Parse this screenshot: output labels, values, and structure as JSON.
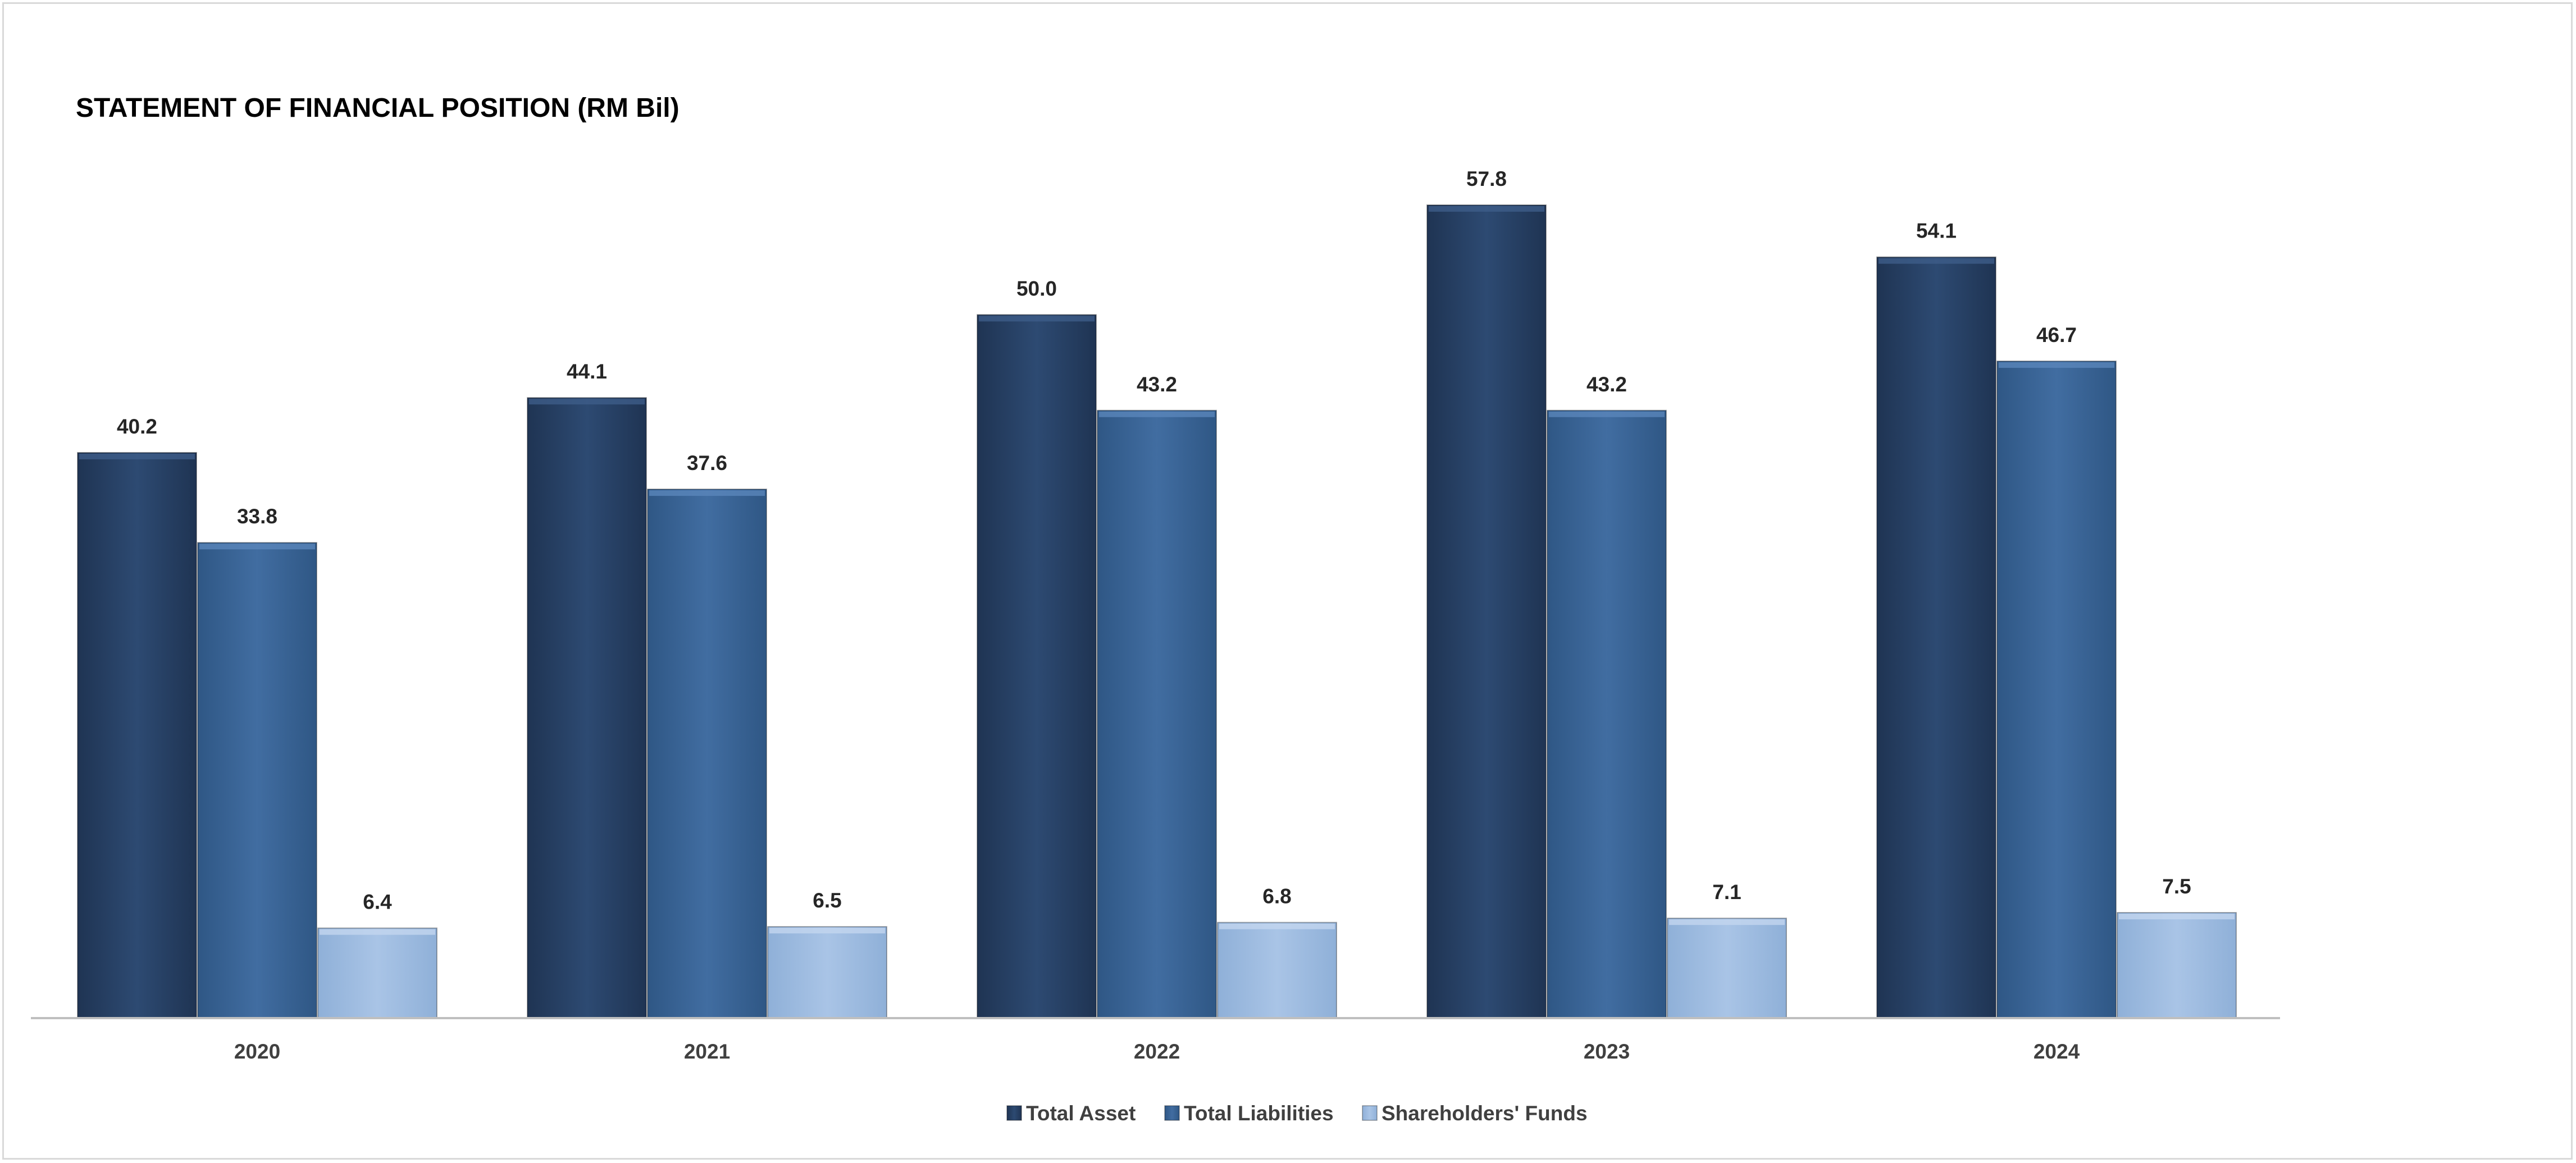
{
  "chart_data": {
    "type": "bar",
    "title": "STATEMENT OF FINANCIAL POSITION (RM Bil)",
    "xlabel": "",
    "ylabel": "",
    "categories": [
      "2020",
      "2021",
      "2022",
      "2023",
      "2024"
    ],
    "series": [
      {
        "name": "Total Asset",
        "values": [
          40.2,
          44.1,
          50.0,
          57.8,
          54.1
        ],
        "labels": [
          "40.2",
          "44.1",
          "50.0",
          "57.8",
          "54.1"
        ],
        "color": "#2a4469"
      },
      {
        "name": "Total Liabilities",
        "values": [
          33.8,
          37.6,
          43.2,
          43.2,
          46.7
        ],
        "labels": [
          "33.8",
          "37.6",
          "43.2",
          "43.2",
          "46.7"
        ],
        "color": "#3c6698"
      },
      {
        "name": "Shareholders' Funds",
        "values": [
          6.4,
          6.5,
          6.8,
          7.1,
          7.5
        ],
        "labels": [
          "6.4",
          "6.5",
          "6.8",
          "7.1",
          "7.5"
        ],
        "color": "#a3bfe3"
      }
    ],
    "ylim": [
      0,
      60
    ],
    "grid": false,
    "legend": "bottom"
  }
}
